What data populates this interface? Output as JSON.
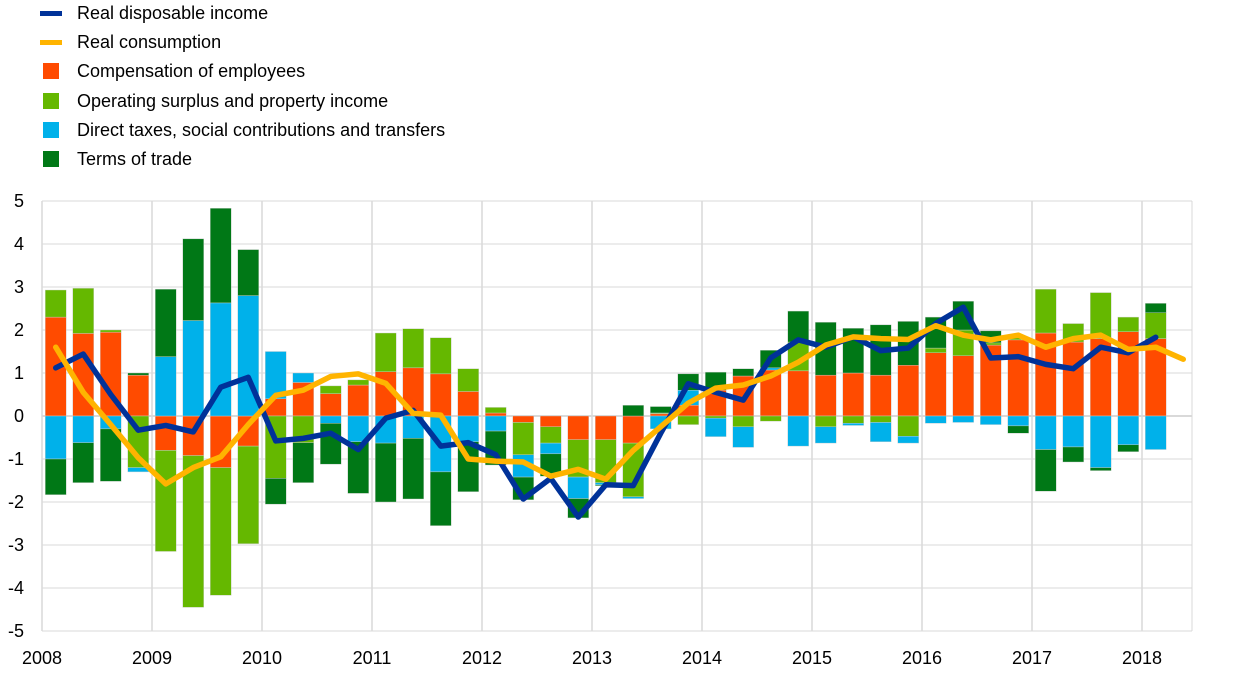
{
  "colors": {
    "real_disposable_income": "#003299",
    "real_consumption": "#FFB400",
    "compensation": "#FF4B00",
    "operating": "#65B800",
    "taxes": "#00B1EA",
    "terms_of_trade": "#007816",
    "grid": "#d9d9d9"
  },
  "chart_data": {
    "type": "bar",
    "stacked": true,
    "title": "",
    "xlabel": "",
    "ylabel": "",
    "ylim": [
      -5,
      5
    ],
    "yticks": [
      5,
      4,
      3,
      2,
      1,
      0,
      -1,
      -2,
      -3,
      -4,
      -5
    ],
    "xtick_labels": [
      "2008",
      "2009",
      "2010",
      "2011",
      "2012",
      "2013",
      "2014",
      "2015",
      "2016",
      "2017",
      "2018"
    ],
    "x_start": "2008Q1",
    "frequency": "quarterly",
    "grid": true,
    "legend_position": "top-left",
    "legend": [
      {
        "key": "real_disposable_income",
        "label": "Real disposable income",
        "kind": "line"
      },
      {
        "key": "real_consumption",
        "label": "Real consumption",
        "kind": "line"
      },
      {
        "key": "compensation",
        "label": "Compensation of employees",
        "kind": "bar"
      },
      {
        "key": "operating",
        "label": "Operating surplus and property income",
        "kind": "bar"
      },
      {
        "key": "taxes",
        "label": "Direct taxes, social contributions and transfers",
        "kind": "bar"
      },
      {
        "key": "terms_of_trade",
        "label": "Terms of trade",
        "kind": "bar"
      }
    ],
    "series": [
      {
        "key": "compensation",
        "name": "Compensation of employees",
        "values": [
          2.3,
          1.92,
          1.95,
          0.95,
          -0.8,
          -0.92,
          -1.2,
          -0.7,
          0.4,
          0.78,
          0.52,
          0.72,
          1.03,
          1.12,
          0.98,
          0.57,
          0.07,
          -0.15,
          -0.25,
          -0.55,
          -0.55,
          -0.63,
          0.05,
          0.25,
          0.6,
          0.93,
          1.07,
          1.05,
          0.95,
          1.0,
          0.95,
          1.18,
          1.47,
          1.4,
          1.65,
          1.77,
          1.93,
          1.72,
          1.8,
          1.96,
          1.8
        ]
      },
      {
        "key": "operating",
        "name": "Operating surplus and property income",
        "values": [
          0.63,
          1.05,
          0.05,
          -1.2,
          -2.35,
          -3.53,
          -2.97,
          -2.27,
          -1.45,
          -0.62,
          0.18,
          0.12,
          0.9,
          0.91,
          0.84,
          0.53,
          0.13,
          -0.75,
          -0.38,
          -0.87,
          -1.0,
          -1.25,
          0.02,
          -0.2,
          -0.05,
          -0.25,
          -0.12,
          0.67,
          -0.25,
          -0.17,
          -0.15,
          -0.47,
          0.11,
          0.6,
          0.05,
          0.05,
          1.02,
          0.43,
          1.07,
          0.34,
          0.6
        ]
      },
      {
        "key": "taxes",
        "name": "Direct taxes, social contributions and transfers",
        "values": [
          -1.0,
          -0.62,
          -0.3,
          -0.1,
          1.38,
          2.22,
          2.63,
          2.8,
          1.1,
          0.22,
          -0.17,
          -0.6,
          -0.63,
          -0.52,
          -1.3,
          -0.6,
          -0.35,
          -0.52,
          -0.25,
          -0.5,
          -0.05,
          -0.04,
          -0.3,
          0.35,
          -0.43,
          -0.48,
          0.05,
          -0.7,
          -0.38,
          -0.05,
          -0.45,
          -0.16,
          -0.17,
          -0.15,
          -0.2,
          -0.23,
          -0.78,
          -0.72,
          -1.2,
          -0.67,
          -0.78
        ]
      },
      {
        "key": "terms_of_trade",
        "name": "Terms of trade",
        "values": [
          -0.83,
          -0.93,
          -1.22,
          0.05,
          1.57,
          1.9,
          2.2,
          1.07,
          -0.6,
          -0.93,
          -0.95,
          -1.2,
          -1.37,
          -1.41,
          -1.25,
          -1.16,
          -0.79,
          -0.53,
          -0.52,
          -0.45,
          -0.02,
          0.25,
          0.15,
          0.38,
          0.42,
          0.17,
          0.41,
          0.72,
          1.23,
          1.04,
          1.17,
          1.02,
          0.72,
          0.67,
          0.28,
          -0.17,
          -0.97,
          -0.35,
          -0.07,
          -0.16,
          0.22
        ]
      },
      {
        "key": "real_disposable_income",
        "name": "Real disposable income",
        "kind": "line",
        "values": [
          1.12,
          1.44,
          0.5,
          -0.33,
          -0.22,
          -0.37,
          0.67,
          0.9,
          -0.58,
          -0.52,
          -0.4,
          -0.78,
          -0.05,
          0.13,
          -0.7,
          -0.62,
          -0.9,
          -1.93,
          -1.45,
          -2.35,
          -1.6,
          -1.62,
          -0.4,
          0.75,
          0.55,
          0.37,
          1.35,
          1.77,
          1.6,
          1.84,
          1.52,
          1.58,
          2.15,
          2.53,
          1.35,
          1.38,
          1.2,
          1.1,
          1.6,
          1.47,
          1.83
        ]
      },
      {
        "key": "real_consumption",
        "name": "Real consumption",
        "kind": "line",
        "values": [
          1.6,
          0.55,
          -0.2,
          -0.97,
          -1.58,
          -1.2,
          -0.95,
          -0.2,
          0.48,
          0.6,
          0.92,
          0.98,
          0.76,
          0.06,
          0.02,
          -1.0,
          -1.05,
          -1.07,
          -1.4,
          -1.24,
          -1.47,
          -0.8,
          -0.25,
          0.3,
          0.65,
          0.72,
          0.93,
          1.25,
          1.65,
          1.84,
          1.8,
          1.78,
          2.1,
          1.88,
          1.77,
          1.88,
          1.6,
          1.8,
          1.88,
          1.55,
          1.6,
          1.32
        ]
      }
    ]
  }
}
